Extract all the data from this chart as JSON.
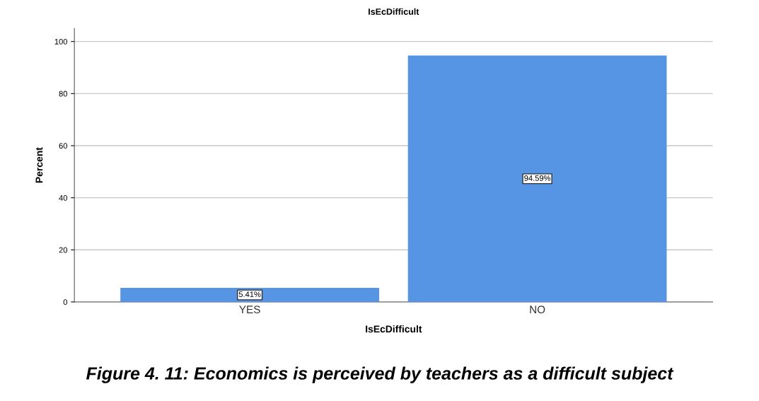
{
  "chart_data": {
    "type": "bar",
    "title": "IsEcDifficult",
    "xlabel": "IsEcDifficult",
    "ylabel": "Percent",
    "categories": [
      "YES",
      "NO"
    ],
    "values": [
      5.41,
      94.59
    ],
    "color": "#5595e3",
    "value_labels": [
      "5.41%",
      "94.59%"
    ],
    "ylim": [
      0,
      105
    ],
    "yticks": [
      0,
      20,
      40,
      60,
      80,
      100
    ],
    "grid": "y",
    "annotations": [
      "Figure 4. 11: Economics is perceived by teachers as a difficult subject"
    ]
  }
}
